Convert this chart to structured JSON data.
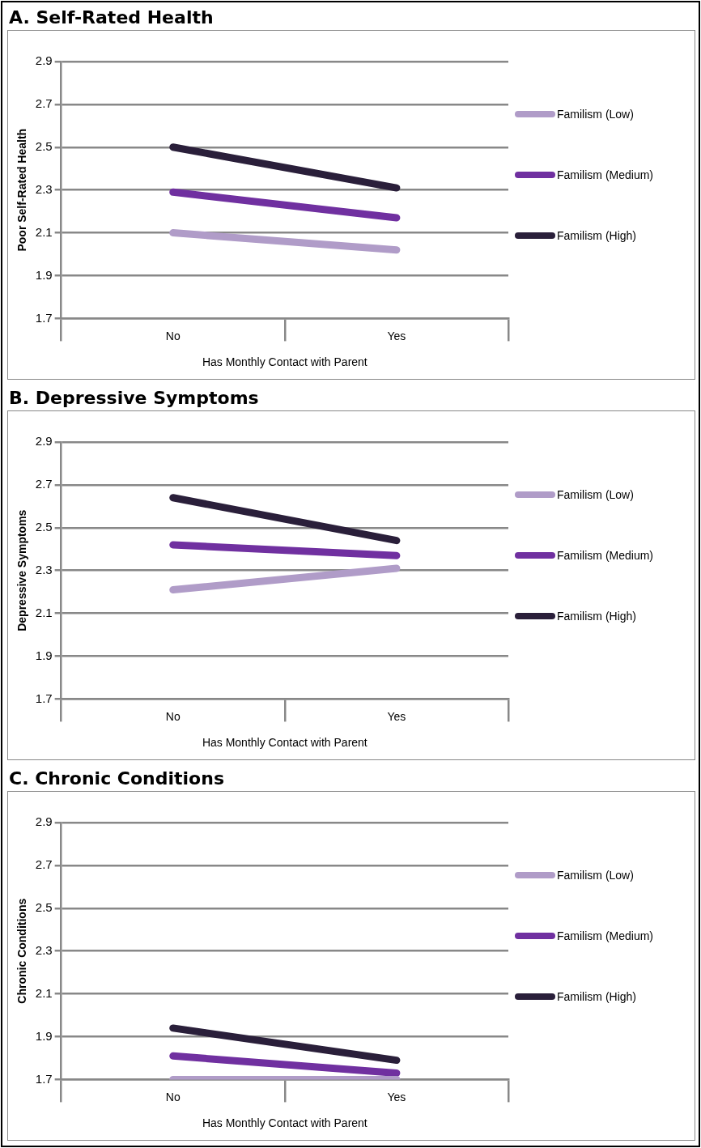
{
  "chart_data": [
    {
      "type": "line",
      "title": "A. Self-Rated Health",
      "ylabel": "Poor Self-Rated Health",
      "xlabel": "Has Monthly Contact with Parent",
      "categories": [
        "No",
        "Yes"
      ],
      "ylim": [
        1.7,
        2.9
      ],
      "yticks": [
        1.7,
        1.9,
        2.1,
        2.3,
        2.5,
        2.7,
        2.9
      ],
      "grid": "y",
      "legend": "right",
      "marker": "none",
      "line_style": "solid",
      "series": [
        {
          "name": "Familism (Low)",
          "color": "#b09cc8",
          "values": [
            2.1,
            2.02
          ]
        },
        {
          "name": "Familism (Medium)",
          "color": "#7030a0",
          "values": [
            2.29,
            2.17
          ]
        },
        {
          "name": "Familism (High)",
          "color": "#2a1f3a",
          "values": [
            2.5,
            2.31
          ]
        }
      ]
    },
    {
      "type": "line",
      "title": "B. Depressive Symptoms",
      "ylabel": "Depressive Symptoms",
      "xlabel": "Has Monthly Contact with Parent",
      "categories": [
        "No",
        "Yes"
      ],
      "ylim": [
        1.7,
        2.9
      ],
      "yticks": [
        1.7,
        1.9,
        2.1,
        2.3,
        2.5,
        2.7,
        2.9
      ],
      "grid": "y",
      "legend": "right",
      "marker": "none",
      "line_style": "solid",
      "series": [
        {
          "name": "Familism (Low)",
          "color": "#b09cc8",
          "values": [
            2.21,
            2.31
          ]
        },
        {
          "name": "Familism (Medium)",
          "color": "#7030a0",
          "values": [
            2.42,
            2.37
          ]
        },
        {
          "name": "Familism (High)",
          "color": "#2a1f3a",
          "values": [
            2.64,
            2.44
          ]
        }
      ]
    },
    {
      "type": "line",
      "title": "C. Chronic Conditions",
      "ylabel": "Chronic Conditions",
      "xlabel": "Has Monthly Contact with Parent",
      "categories": [
        "No",
        "Yes"
      ],
      "ylim": [
        1.7,
        2.9
      ],
      "yticks": [
        1.7,
        1.9,
        2.1,
        2.3,
        2.5,
        2.7,
        2.9
      ],
      "grid": "y",
      "legend": "right",
      "marker": "none",
      "line_style": "solid",
      "series": [
        {
          "name": "Familism (Low)",
          "color": "#b09cc8",
          "values": [
            1.7,
            1.7
          ]
        },
        {
          "name": "Familism (Medium)",
          "color": "#7030a0",
          "values": [
            1.81,
            1.73
          ]
        },
        {
          "name": "Familism (High)",
          "color": "#2a1f3a",
          "values": [
            1.94,
            1.79
          ]
        }
      ]
    }
  ]
}
